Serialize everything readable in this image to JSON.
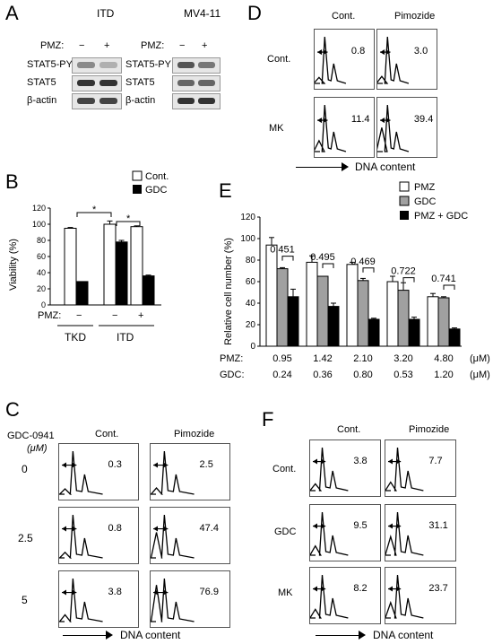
{
  "panels": {
    "A": "A",
    "B": "B",
    "C": "C",
    "D": "D",
    "E": "E",
    "F": "F"
  },
  "panelA": {
    "left_title": "ITD",
    "right_title": "MV4-11",
    "pmz_label": "PMZ:",
    "minus": "−",
    "plus": "+",
    "rows": [
      "STAT5-PY",
      "STAT5",
      "β-actin"
    ]
  },
  "panelB": {
    "legend": [
      "Cont.",
      "GDC"
    ],
    "ylabel": "Viability (%)",
    "yticks": [
      "0",
      "20",
      "40",
      "60",
      "80",
      "100",
      "120"
    ],
    "pmz_label": "PMZ:",
    "pmz_marks": [
      "−",
      "−",
      "+"
    ],
    "groups": [
      "TKD",
      "ITD"
    ],
    "sig": [
      "*",
      "*"
    ]
  },
  "chart_data": [
    {
      "type": "bar",
      "ylabel": "Viability (%)",
      "ylim": [
        0,
        120
      ],
      "categories": [
        "TKD PMZ −",
        "ITD PMZ −",
        "ITD PMZ +"
      ],
      "series": [
        {
          "name": "Cont.",
          "values": [
            95,
            100,
            97
          ],
          "errors": [
            1,
            4,
            1
          ]
        },
        {
          "name": "GDC",
          "values": [
            29,
            78,
            36
          ],
          "errors": [
            0,
            2,
            1
          ]
        }
      ],
      "legend_position": "top-right",
      "annotations": [
        "*",
        "*"
      ]
    },
    {
      "type": "bar",
      "ylabel": "Relative cell number (%)",
      "ylim": [
        0,
        120
      ],
      "categories": [
        "1",
        "2",
        "3",
        "4",
        "5"
      ],
      "pmz": [
        "0.95",
        "1.42",
        "2.10",
        "3.20",
        "4.80"
      ],
      "gdc": [
        "0.24",
        "0.36",
        "0.80",
        "0.53",
        "1.20"
      ],
      "unit": "(μM)",
      "series": [
        {
          "name": "PMZ",
          "values": [
            94,
            78,
            76,
            60,
            46
          ],
          "errors": [
            7,
            6,
            2,
            5,
            3
          ]
        },
        {
          "name": "GDC",
          "values": [
            72,
            65,
            61,
            52,
            45
          ],
          "errors": [
            1,
            0,
            2,
            7,
            1
          ]
        },
        {
          "name": "PMZ + GDC",
          "values": [
            46,
            37,
            25,
            25,
            16
          ],
          "errors": [
            7,
            3,
            1,
            2,
            1
          ]
        }
      ],
      "ratios": [
        "0.451",
        "0.495",
        "0.469",
        "0.722",
        "0.741"
      ],
      "legend_position": "top-right"
    }
  ],
  "panelE": {
    "ylabel": "Relative cell number (%)",
    "yticks": [
      "0",
      "20",
      "40",
      "60",
      "80",
      "100",
      "120"
    ],
    "legend": [
      "PMZ",
      "GDC",
      "PMZ + GDC"
    ],
    "pmz_label": "PMZ:",
    "gdc_label": "GDC:",
    "unit": "(μM)"
  },
  "panelC": {
    "title_line1": "GDC-0941",
    "title_line2": "(μM)",
    "cols": [
      "Cont.",
      "Pimozide"
    ],
    "rows": [
      {
        "label": "0",
        "values": [
          "0.3",
          "2.5"
        ]
      },
      {
        "label": "2.5",
        "values": [
          "0.8",
          "47.4"
        ]
      },
      {
        "label": "5",
        "values": [
          "3.8",
          "76.9"
        ]
      }
    ],
    "xaxis": "DNA content"
  },
  "panelD": {
    "cols": [
      "Cont.",
      "Pimozide"
    ],
    "rows": [
      {
        "label": "Cont.",
        "values": [
          "0.8",
          "3.0"
        ]
      },
      {
        "label": "MK",
        "values": [
          "11.4",
          "39.4"
        ]
      }
    ],
    "xaxis": "DNA content"
  },
  "panelF": {
    "cols": [
      "Cont.",
      "Pimozide"
    ],
    "rows": [
      {
        "label": "Cont.",
        "values": [
          "3.8",
          "7.7"
        ]
      },
      {
        "label": "GDC",
        "values": [
          "9.5",
          "31.1"
        ]
      },
      {
        "label": "MK",
        "values": [
          "8.2",
          "23.7"
        ]
      }
    ],
    "xaxis": "DNA content"
  }
}
